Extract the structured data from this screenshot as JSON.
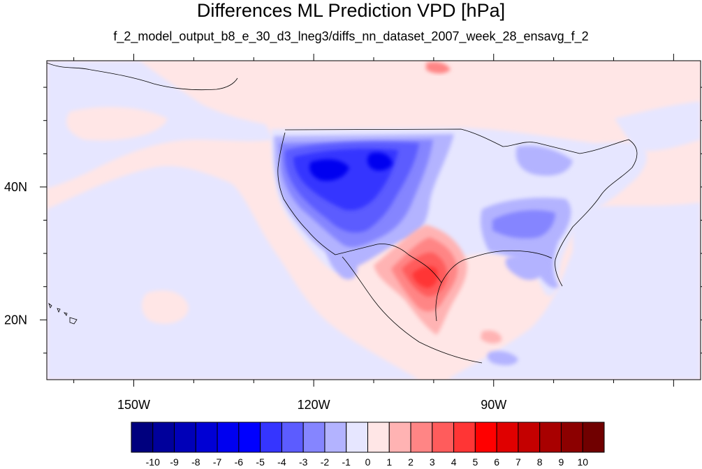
{
  "title": "Differences ML Prediction VPD [hPa]",
  "subtitle": "f_2_model_output_b8_e_30_d3_lneg3/diffs_nn_dataset_2007_week_28_ensavg_f_2",
  "map": {
    "lon_range": [
      -164.5,
      -55.5
    ],
    "lat_range": [
      11,
      59
    ],
    "x_ticks": [
      {
        "lon": -150,
        "label": "150W"
      },
      {
        "lon": -120,
        "label": "120W"
      },
      {
        "lon": -90,
        "label": "90W"
      }
    ],
    "y_ticks": [
      {
        "lat": 40,
        "label": "40N"
      },
      {
        "lat": 20,
        "label": "20N"
      }
    ]
  },
  "colorbar": {
    "labels": [
      "-10",
      "-9",
      "-8",
      "-7",
      "-6",
      "-5",
      "-4",
      "-3",
      "-2",
      "-1",
      "0",
      "1",
      "2",
      "3",
      "4",
      "5",
      "6",
      "7",
      "8",
      "9",
      "10"
    ],
    "colors": [
      "#00007e",
      "#00009b",
      "#0000b8",
      "#0000d4",
      "#0000f0",
      "#0000ff",
      "#3535ff",
      "#5c5cff",
      "#8585ff",
      "#b3b3ff",
      "#e6e6ff",
      "#ffe6e6",
      "#ffb3b3",
      "#ff8585",
      "#ff5c5c",
      "#ff3535",
      "#ff0000",
      "#e00000",
      "#c40000",
      "#a80000",
      "#8c0000",
      "#700000"
    ]
  }
}
